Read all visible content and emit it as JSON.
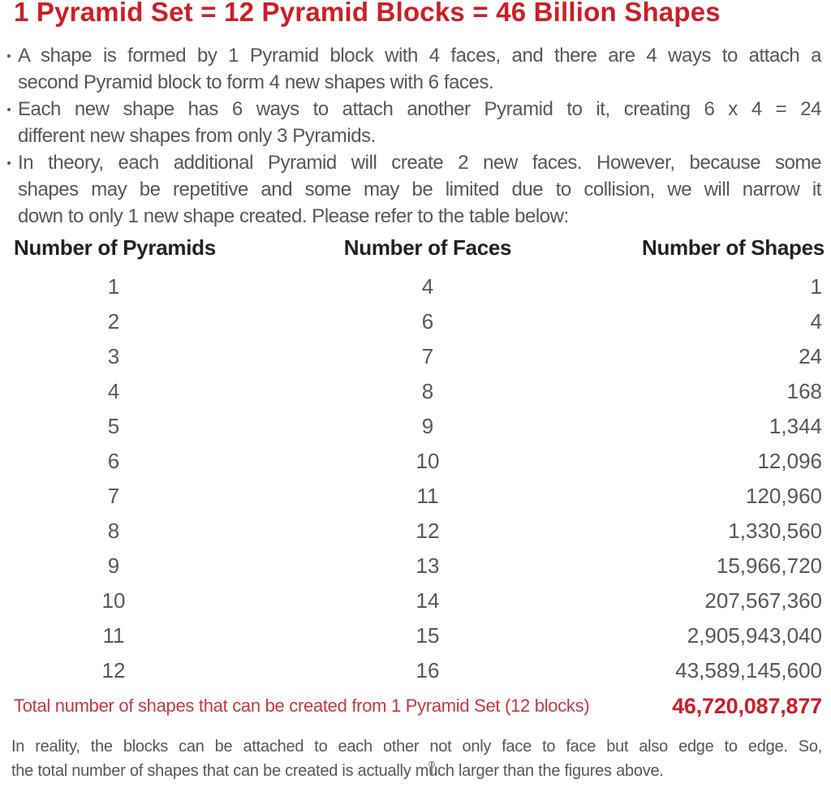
{
  "title": "1 Pyramid Set = 12 Pyramid Blocks = 46 Billion Shapes",
  "bullets": [
    {
      "lines": [
        "A shape is formed by 1 Pyramid block with 4 faces, and there are 4 ways to attach a",
        "second Pyramid block to form 4 new shapes with 6 faces."
      ]
    },
    {
      "lines": [
        "Each new shape has 6 ways to attach another Pyramid to it, creating 6 x 4 = 24",
        "different new shapes from only 3 Pyramids."
      ]
    },
    {
      "lines": [
        "In theory, each additional Pyramid will create 2 new faces. However, because some",
        "shapes may be repetitive and some may be limited due to collision, we will narrow it",
        "down to only 1 new shape created. Please refer to the table below:"
      ]
    }
  ],
  "table": {
    "headers": [
      "Number of Pyramids",
      "Number of Faces",
      "Number of Shapes"
    ],
    "rows": [
      [
        "1",
        "4",
        "1"
      ],
      [
        "2",
        "6",
        "4"
      ],
      [
        "3",
        "7",
        "24"
      ],
      [
        "4",
        "8",
        "168"
      ],
      [
        "5",
        "9",
        "1,344"
      ],
      [
        "6",
        "10",
        "12,096"
      ],
      [
        "7",
        "11",
        "120,960"
      ],
      [
        "8",
        "12",
        "1,330,560"
      ],
      [
        "9",
        "13",
        "15,966,720"
      ],
      [
        "10",
        "14",
        "207,567,360"
      ],
      [
        "11",
        "15",
        "2,905,943,040"
      ],
      [
        "12",
        "16",
        "43,589,145,600"
      ]
    ],
    "total_label": "Total number of shapes that can be created from 1 Pyramid Set (12 blocks)",
    "total_value": "46,720,087,877"
  },
  "footer": {
    "lines": [
      "In reality, the blocks can be attached to each other not only face to face but also edge to edge. So,",
      "the total number of shapes that can be created is actually much larger than the figures above."
    ]
  },
  "colors": {
    "title_red": "#cc2027",
    "total_label_red": "#c43a40",
    "body_gray": "#56575a",
    "table_number_gray": "#58585b",
    "header_black": "#232122"
  }
}
